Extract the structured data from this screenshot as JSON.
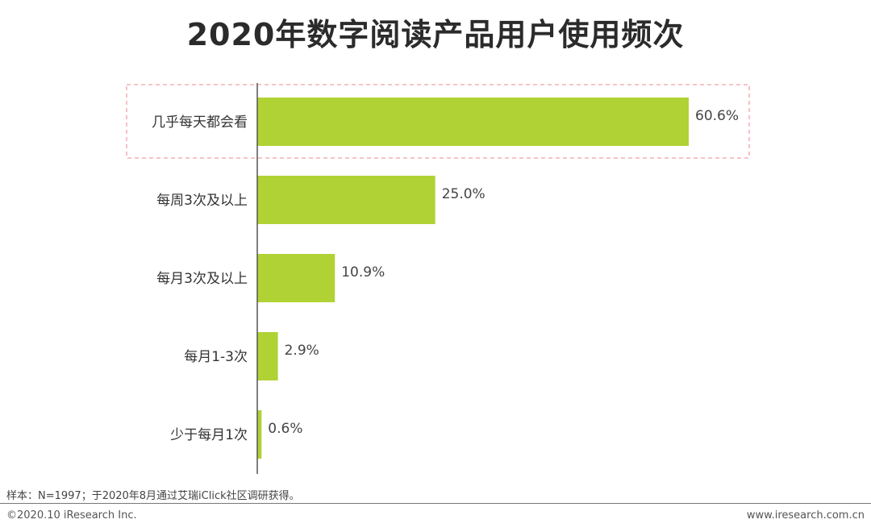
{
  "title": "2020年数字阅读产品用户使用频次",
  "note": "样本：N=1997；于2020年8月通过艾瑞iClick社区调研获得。",
  "copyright": "©2020.10 iResearch Inc.",
  "website": "www.iresearch.com.cn",
  "chart_data": {
    "type": "bar",
    "orientation": "horizontal",
    "categories": [
      "几乎每天都会看",
      "每周3次及以上",
      "每月3次及以上",
      "每月1-3次",
      "少于每月1次"
    ],
    "values": [
      60.6,
      25.0,
      10.9,
      2.9,
      0.6
    ],
    "value_labels": [
      "60.6%",
      "25.0%",
      "10.9%",
      "2.9%",
      "0.6%"
    ],
    "xlim": [
      0,
      70
    ],
    "grid": false,
    "bar_color": "#b1d235",
    "highlight_index": 0,
    "highlight_color": "#f0a0a8"
  }
}
